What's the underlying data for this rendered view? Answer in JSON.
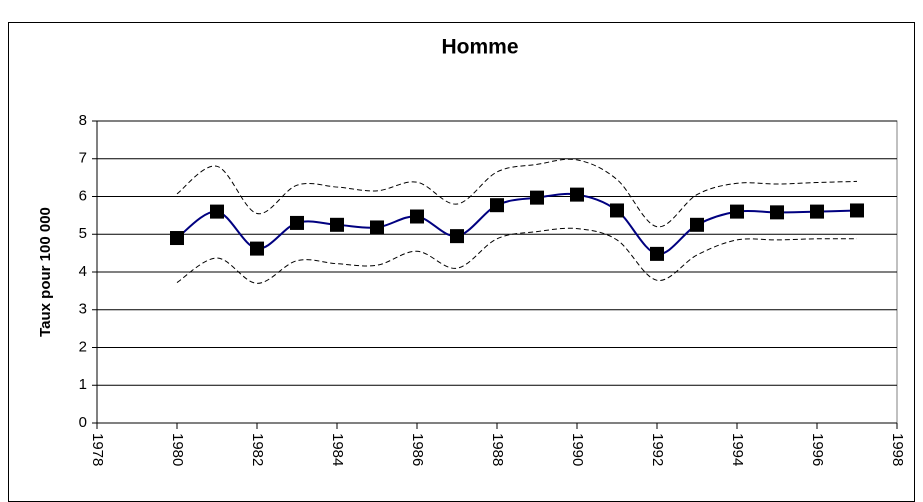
{
  "chart_data": {
    "type": "line",
    "title": "Homme",
    "y_label": "Taux pour 100 000",
    "x": [
      1980,
      1981,
      1982,
      1983,
      1984,
      1985,
      1986,
      1987,
      1988,
      1989,
      1990,
      1991,
      1992,
      1993,
      1994,
      1995,
      1996,
      1997
    ],
    "series": [
      {
        "color": "#000080",
        "style": "solid",
        "marker": "square",
        "values": [
          4.9,
          5.6,
          4.62,
          5.3,
          5.25,
          5.18,
          5.47,
          4.95,
          5.77,
          5.97,
          6.05,
          5.63,
          4.48,
          5.25,
          5.6,
          5.58,
          5.6,
          5.63
        ]
      },
      {
        "color": "#000000",
        "style": "dashed",
        "values": [
          6.07,
          6.8,
          5.55,
          6.3,
          6.25,
          6.15,
          6.38,
          5.8,
          6.65,
          6.85,
          6.97,
          6.45,
          5.2,
          6.05,
          6.35,
          6.33,
          6.37,
          6.4
        ]
      },
      {
        "color": "#000000",
        "style": "dashed",
        "values": [
          3.72,
          4.37,
          3.7,
          4.3,
          4.22,
          4.18,
          4.55,
          4.1,
          4.88,
          5.07,
          5.15,
          4.85,
          3.78,
          4.45,
          4.85,
          4.85,
          4.88,
          4.88
        ]
      }
    ],
    "xlim": [
      1978,
      1998
    ],
    "xticks": [
      1978,
      1980,
      1982,
      1984,
      1986,
      1988,
      1990,
      1992,
      1994,
      1996,
      1998
    ],
    "ylim": [
      0,
      8
    ],
    "yticks": [
      0,
      1,
      2,
      3,
      4,
      5,
      6,
      7,
      8
    ],
    "grid": true,
    "smooth": true
  }
}
